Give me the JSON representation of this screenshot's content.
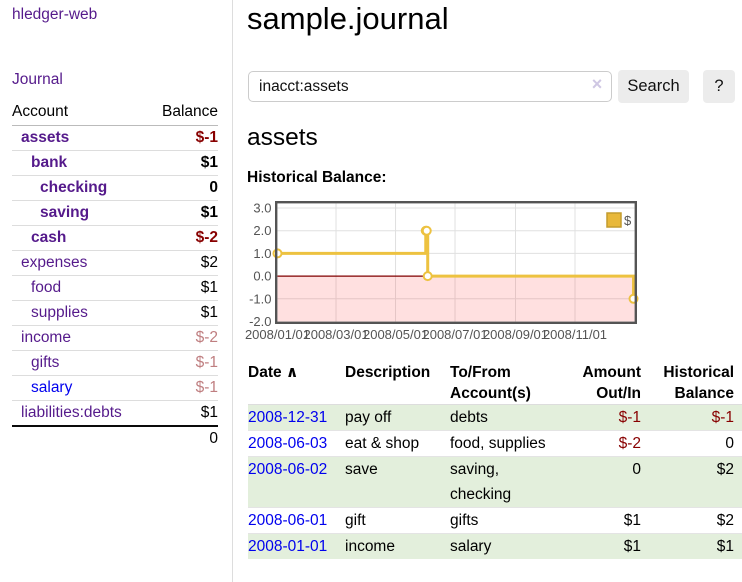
{
  "app": {
    "brand": "hledger-web"
  },
  "sidebar": {
    "journal_link": "Journal",
    "accounts_table": {
      "headers": [
        "Account",
        "Balance"
      ],
      "rows": [
        {
          "name": "assets",
          "balance": "$-1",
          "indent": 1,
          "bold": true,
          "balance_style": "neg-bold"
        },
        {
          "name": "bank",
          "balance": "$1",
          "indent": 2,
          "bold": true,
          "balance_style": "bold"
        },
        {
          "name": "checking",
          "balance": "0",
          "indent": 3,
          "bold": true,
          "balance_style": "bold"
        },
        {
          "name": "saving",
          "balance": "$1",
          "indent": 3,
          "bold": true,
          "balance_style": "bold"
        },
        {
          "name": "cash",
          "balance": "$-2",
          "indent": 2,
          "bold": true,
          "balance_style": "neg-bold"
        },
        {
          "name": "expenses",
          "balance": "$2",
          "indent": 1,
          "bold": false,
          "balance_style": "plain"
        },
        {
          "name": "food",
          "balance": "$1",
          "indent": 2,
          "bold": false,
          "balance_style": "plain"
        },
        {
          "name": "supplies",
          "balance": "$1",
          "indent": 2,
          "bold": false,
          "balance_style": "plain"
        },
        {
          "name": "income",
          "balance": "$-2",
          "indent": 1,
          "bold": false,
          "balance_style": "neg-light"
        },
        {
          "name": "gifts",
          "balance": "$-1",
          "indent": 2,
          "bold": false,
          "balance_style": "neg-light"
        },
        {
          "name": "salary",
          "balance": "$-1",
          "indent": 2,
          "bold": false,
          "balance_style": "neg-light",
          "link_color": "blue"
        },
        {
          "name": "liabilities:debts",
          "balance": "$1",
          "indent": 1,
          "bold": false,
          "balance_style": "plain"
        }
      ],
      "total": "0"
    }
  },
  "main": {
    "title": "sample.journal",
    "search": {
      "value": "inacct:assets",
      "clear_label": "×",
      "button_label": "Search",
      "help_label": "?"
    },
    "account_heading": "assets",
    "chart_label": "Historical Balance:"
  },
  "chart_data": {
    "type": "line",
    "title": "Historical Balance",
    "style": "step-after",
    "series": [
      {
        "name": "$",
        "color": "#edc240",
        "points": [
          [
            "2008-01-01",
            1
          ],
          [
            "2008-06-01",
            2
          ],
          [
            "2008-06-02",
            2
          ],
          [
            "2008-06-03",
            0
          ],
          [
            "2008-12-31",
            -1
          ]
        ]
      }
    ],
    "xlim": [
      "2008-01-01",
      "2009-01-01"
    ],
    "ylim": [
      -2.0,
      3.2
    ],
    "yticks": [
      {
        "v": 3,
        "label": "3.0"
      },
      {
        "v": 2,
        "label": "2.0"
      },
      {
        "v": 1,
        "label": "1.0"
      },
      {
        "v": 0,
        "label": "0.0"
      },
      {
        "v": -1,
        "label": "-1.0"
      },
      {
        "v": -2,
        "label": "-2.0"
      }
    ],
    "xticks": [
      {
        "d": "2008-01-01",
        "label": "2008/01/01"
      },
      {
        "d": "2008-03-01",
        "label": "2008/03/01"
      },
      {
        "d": "2008-05-01",
        "label": "2008/05/01"
      },
      {
        "d": "2008-07-01",
        "label": "2008/07/01"
      },
      {
        "d": "2008-09-01",
        "label": "2008/09/01"
      },
      {
        "d": "2008-11-01",
        "label": "2008/11/01"
      }
    ],
    "grid": true,
    "legend": {
      "position": "top-right",
      "entries": [
        {
          "label": "$",
          "color": "#e8b83a"
        }
      ]
    },
    "negative_region_color": "rgba(255,60,60,0.16)",
    "zero_line_color": "#800000",
    "border_color": "#545454",
    "gridline_color": "#e0e0e0"
  },
  "register": {
    "sort_arrow": "∧",
    "headers": [
      {
        "l1": "Date",
        "l2": ""
      },
      {
        "l1": "Description",
        "l2": ""
      },
      {
        "l1": "To/From",
        "l2": "Account(s)"
      },
      {
        "l1": "Amount",
        "l2": "Out/In"
      },
      {
        "l1": "Historical",
        "l2": "Balance"
      }
    ],
    "rows": [
      {
        "date": "2008-12-31",
        "description": "pay off",
        "accounts": "debts",
        "amount": "$-1",
        "balance": "$-1",
        "amount_negative": true,
        "balance_negative": true
      },
      {
        "date": "2008-06-03",
        "description": "eat & shop",
        "accounts": "food, supplies",
        "amount": "$-2",
        "balance": "0",
        "amount_negative": true,
        "balance_negative": false
      },
      {
        "date": "2008-06-02",
        "description": "save",
        "accounts": "saving, checking",
        "amount": "0",
        "balance": "$2",
        "amount_negative": false,
        "balance_negative": false
      },
      {
        "date": "2008-06-01",
        "description": "gift",
        "accounts": "gifts",
        "amount": "$1",
        "balance": "$2",
        "amount_negative": false,
        "balance_negative": false
      },
      {
        "date": "2008-01-01",
        "description": "income",
        "accounts": "salary",
        "amount": "$1",
        "balance": "$1",
        "amount_negative": false,
        "balance_negative": false
      }
    ]
  }
}
